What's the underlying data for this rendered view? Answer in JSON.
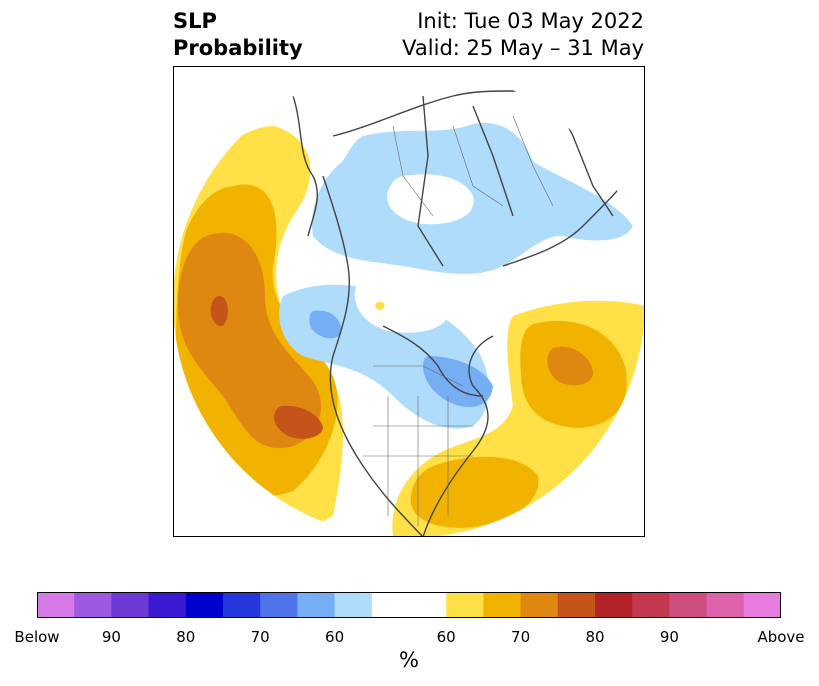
{
  "title": {
    "left_line1": "SLP",
    "left_line2": "Probability",
    "right_line1": "Init: Tue 03 May 2022",
    "right_line2": "Valid: 25 May – 31 May"
  },
  "colorbar": {
    "unit": "%",
    "colors": [
      "#d67ae8",
      "#9f58e0",
      "#6c39d6",
      "#3b1ad2",
      "#0000cc",
      "#2337da",
      "#4f73e8",
      "#76aef4",
      "#aedcfa",
      "#ffffff",
      "#ffffff",
      "#ffe046",
      "#f2b300",
      "#de8812",
      "#c5541b",
      "#b12326",
      "#c3384e",
      "#cd4f80",
      "#de63ad",
      "#e87be0"
    ],
    "ticks": [
      "Below",
      "90",
      "80",
      "70",
      "60",
      "60",
      "70",
      "80",
      "90",
      "Above"
    ]
  },
  "map": {
    "projection": "north-polar-stereographic",
    "legend": "none"
  }
}
